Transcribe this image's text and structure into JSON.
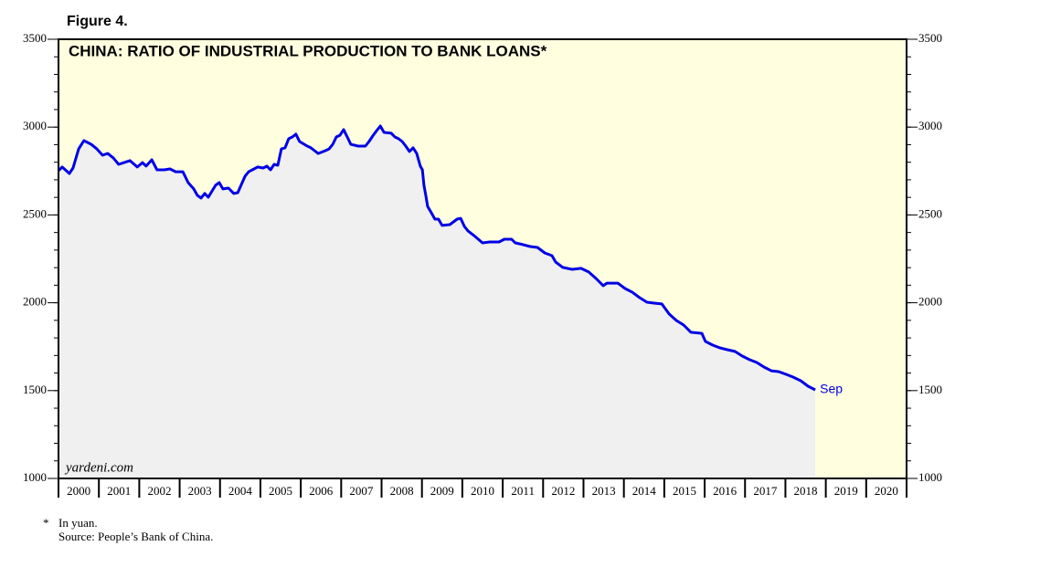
{
  "chart_data": {
    "type": "line",
    "figure_label": "Figure 4.",
    "title": "CHINA: RATIO OF INDUSTRIAL PRODUCTION TO BANK LOANS*",
    "watermark": "yardeni.com",
    "end_label": "Sep",
    "footnote_marker": "*",
    "footnote": "In yuan.",
    "source": "Source: People’s Bank of China.",
    "background_color": "#ffffe0",
    "area_color": "#f0f0f0",
    "grid": false,
    "xlim": [
      2000,
      2021
    ],
    "xticks": [
      2000,
      2001,
      2002,
      2003,
      2004,
      2005,
      2006,
      2007,
      2008,
      2009,
      2010,
      2011,
      2012,
      2013,
      2014,
      2015,
      2016,
      2017,
      2018,
      2019,
      2020
    ],
    "ylim": [
      1000,
      3500
    ],
    "yticks": [
      1000,
      1500,
      2000,
      2500,
      3000,
      3500
    ],
    "x": [
      2000.0,
      2000.09,
      2000.27,
      2000.36,
      2000.5,
      2000.63,
      2000.81,
      2000.95,
      2001.09,
      2001.22,
      2001.36,
      2001.49,
      2001.77,
      2001.95,
      2002.08,
      2002.17,
      2002.31,
      2002.44,
      2002.62,
      2002.76,
      2002.9,
      2003.08,
      2003.21,
      2003.35,
      2003.44,
      2003.53,
      2003.62,
      2003.71,
      2003.89,
      2003.98,
      2004.07,
      2004.21,
      2004.34,
      2004.44,
      2004.53,
      2004.62,
      2004.71,
      2004.8,
      2004.93,
      2005.07,
      2005.16,
      2005.25,
      2005.34,
      2005.43,
      2005.52,
      2005.61,
      2005.7,
      2005.79,
      2005.88,
      2005.97,
      2006.16,
      2006.25,
      2006.34,
      2006.43,
      2006.61,
      2006.7,
      2006.79,
      2006.88,
      2006.97,
      2007.06,
      2007.15,
      2007.24,
      2007.42,
      2007.6,
      2007.69,
      2007.78,
      2007.88,
      2007.97,
      2008.06,
      2008.24,
      2008.33,
      2008.42,
      2008.51,
      2008.6,
      2008.69,
      2008.78,
      2008.87,
      2008.96,
      2009.01,
      2009.05,
      2009.1,
      2009.14,
      2009.23,
      2009.32,
      2009.41,
      2009.5,
      2009.69,
      2009.87,
      2009.96,
      2010.05,
      2010.14,
      2010.32,
      2010.5,
      2010.68,
      2010.91,
      2011.04,
      2011.22,
      2011.31,
      2011.5,
      2011.68,
      2011.86,
      2012.04,
      2012.22,
      2012.31,
      2012.49,
      2012.72,
      2012.94,
      2013.13,
      2013.31,
      2013.49,
      2013.58,
      2013.85,
      2014.03,
      2014.21,
      2014.39,
      2014.57,
      2014.75,
      2014.94,
      2015.12,
      2015.3,
      2015.48,
      2015.66,
      2015.93,
      2016.02,
      2016.2,
      2016.38,
      2016.56,
      2016.75,
      2016.93,
      2017.11,
      2017.29,
      2017.47,
      2017.65,
      2017.83,
      2018.01,
      2018.19,
      2018.38,
      2018.56,
      2018.74
    ],
    "series": [
      {
        "color": "#0000e6",
        "values": [
          2752,
          2773,
          2736,
          2767,
          2876,
          2923,
          2902,
          2876,
          2840,
          2850,
          2824,
          2788,
          2809,
          2773,
          2798,
          2778,
          2814,
          2757,
          2757,
          2762,
          2746,
          2746,
          2684,
          2648,
          2611,
          2596,
          2622,
          2601,
          2669,
          2684,
          2648,
          2653,
          2622,
          2627,
          2674,
          2721,
          2746,
          2757,
          2773,
          2767,
          2778,
          2757,
          2788,
          2783,
          2876,
          2882,
          2934,
          2944,
          2960,
          2918,
          2892,
          2882,
          2866,
          2850,
          2866,
          2876,
          2902,
          2944,
          2954,
          2986,
          2944,
          2902,
          2892,
          2892,
          2918,
          2949,
          2980,
          3006,
          2970,
          2965,
          2944,
          2934,
          2918,
          2892,
          2861,
          2882,
          2850,
          2778,
          2757,
          2669,
          2606,
          2549,
          2513,
          2476,
          2476,
          2440,
          2445,
          2476,
          2481,
          2435,
          2409,
          2377,
          2341,
          2346,
          2346,
          2362,
          2362,
          2341,
          2331,
          2320,
          2315,
          2284,
          2268,
          2232,
          2201,
          2190,
          2196,
          2175,
          2138,
          2097,
          2112,
          2112,
          2081,
          2060,
          2029,
          2003,
          1998,
          1993,
          1936,
          1899,
          1873,
          1832,
          1826,
          1780,
          1759,
          1743,
          1733,
          1723,
          1697,
          1676,
          1660,
          1634,
          1613,
          1608,
          1593,
          1577,
          1556,
          1525,
          1504
        ]
      }
    ]
  }
}
